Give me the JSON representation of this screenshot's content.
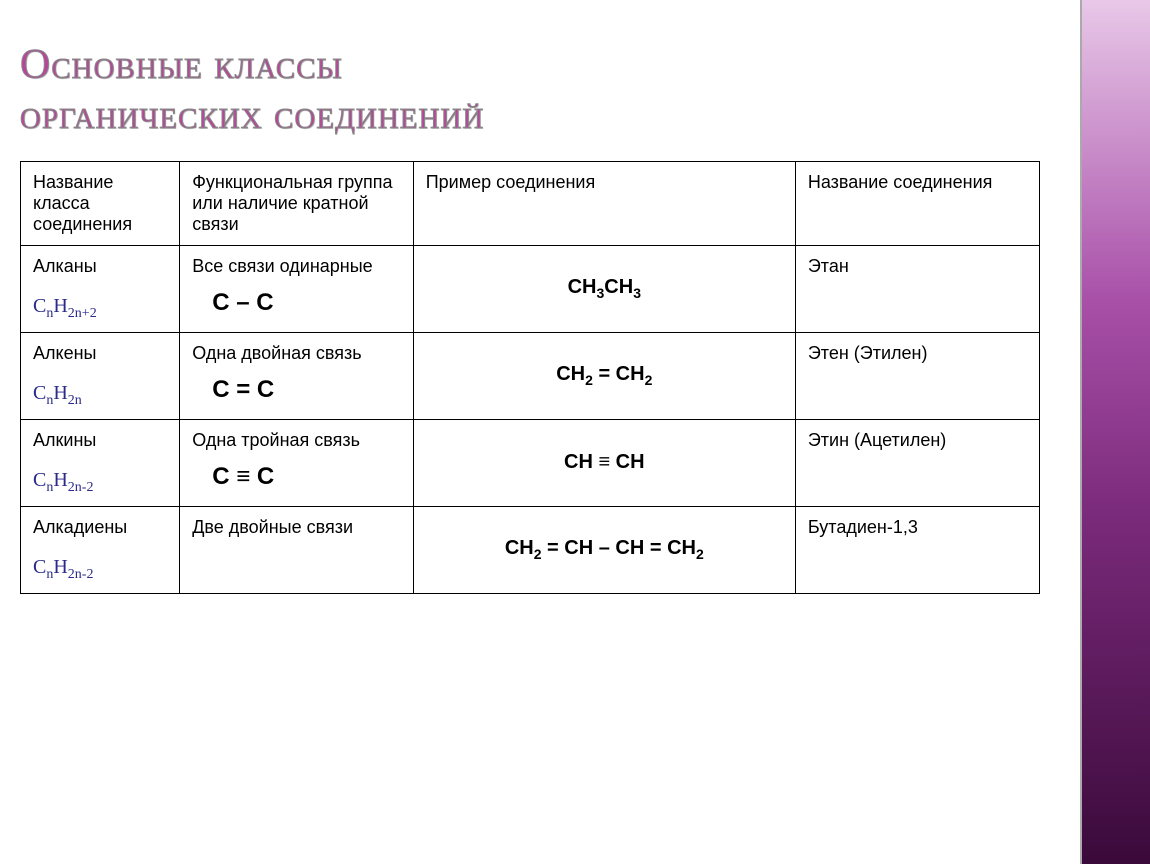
{
  "accent_color": "#b8459a",
  "gradient_colors": [
    "#e8c8e8",
    "#a84fa8",
    "#7a2a7a",
    "#3a0a3a"
  ],
  "title_line1": "Основные классы",
  "title_line2": "органических соединений",
  "headers": {
    "col1": "Название класса соединения",
    "col2": "Функциональная группа или наличие кратной связи",
    "col3": "Пример соединения",
    "col4": "Название соединения"
  },
  "rows": [
    {
      "class_name": "Алканы",
      "general_formula_html": "C<sub>n</sub>H<sub>2n+2</sub>",
      "bond_desc": "Все связи одинарные",
      "bond_symbol": "C – C",
      "example_html": "CH<sub>3</sub>CH<sub>3</sub>",
      "compound_name": "Этан"
    },
    {
      "class_name": "Алкены",
      "general_formula_html": "C<sub>n</sub>H<sub>2n</sub>",
      "bond_desc": "Одна двойная связь",
      "bond_symbol": "C = C",
      "example_html": "CH<sub>2</sub> =  CH<sub>2</sub>",
      "compound_name": "Этен (Этилен)"
    },
    {
      "class_name": "Алкины",
      "general_formula_html": "C<sub>n</sub>H<sub>2n-2</sub>",
      "bond_desc": "Одна тройная связь",
      "bond_symbol": "C ≡ C",
      "example_html": "CH ≡ CH",
      "compound_name": "Этин (Ацетилен)"
    },
    {
      "class_name": "Алкадиены",
      "general_formula_html": "C<sub>n</sub>H<sub>2n-2</sub>",
      "bond_desc": "Две двойные связи",
      "bond_symbol": "",
      "example_html": "CH<sub>2</sub> = CH – CH = CH<sub>2</sub>",
      "compound_name": "Бутадиен-1,3"
    }
  ]
}
